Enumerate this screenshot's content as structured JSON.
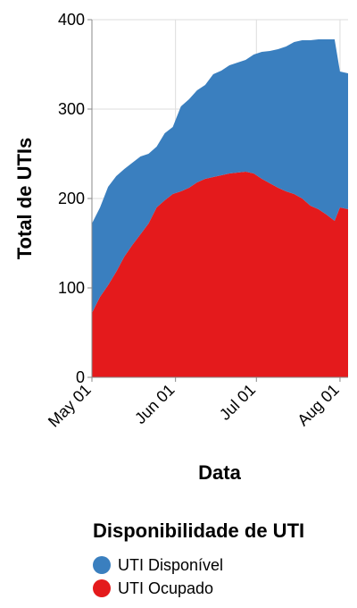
{
  "chart_data": {
    "type": "area",
    "stacked": true,
    "xlabel": "Data",
    "ylabel": "Total de UTIs",
    "ylim": [
      0,
      400
    ],
    "yticks": [
      0,
      100,
      200,
      300,
      400
    ],
    "xlim": [
      "2020-05-01",
      "2020-08-04"
    ],
    "xticks": [
      {
        "date": "2020-05-01",
        "label": "May 01"
      },
      {
        "date": "2020-06-01",
        "label": "Jun 01"
      },
      {
        "date": "2020-07-01",
        "label": "Jul 01"
      },
      {
        "date": "2020-08-01",
        "label": "Aug 01"
      }
    ],
    "grid": true,
    "legend_position": "bottom",
    "legend_title": "Disponibilidade de UTI",
    "x": [
      "2020-05-01",
      "2020-05-04",
      "2020-05-07",
      "2020-05-10",
      "2020-05-13",
      "2020-05-16",
      "2020-05-19",
      "2020-05-22",
      "2020-05-25",
      "2020-05-28",
      "2020-05-31",
      "2020-06-03",
      "2020-06-06",
      "2020-06-09",
      "2020-06-12",
      "2020-06-15",
      "2020-06-18",
      "2020-06-21",
      "2020-06-24",
      "2020-06-27",
      "2020-06-30",
      "2020-07-03",
      "2020-07-06",
      "2020-07-09",
      "2020-07-12",
      "2020-07-15",
      "2020-07-18",
      "2020-07-21",
      "2020-07-24",
      "2020-07-27",
      "2020-07-30",
      "2020-08-01",
      "2020-08-04"
    ],
    "series": [
      {
        "name": "UTI Ocupado",
        "color": "#e41a1c",
        "values": [
          72,
          90,
          103,
          118,
          135,
          148,
          160,
          172,
          190,
          198,
          205,
          208,
          212,
          218,
          222,
          224,
          226,
          228,
          229,
          230,
          228,
          222,
          217,
          212,
          208,
          205,
          200,
          192,
          188,
          182,
          175,
          190,
          188
        ]
      },
      {
        "name": "UTI Disponível",
        "color": "#3a7fbf",
        "values": [
          100,
          100,
          110,
          107,
          98,
          92,
          87,
          78,
          68,
          75,
          75,
          95,
          99,
          103,
          105,
          115,
          117,
          121,
          123,
          125,
          133,
          142,
          148,
          155,
          162,
          170,
          177,
          185,
          190,
          196,
          203,
          152,
          152
        ]
      }
    ]
  }
}
